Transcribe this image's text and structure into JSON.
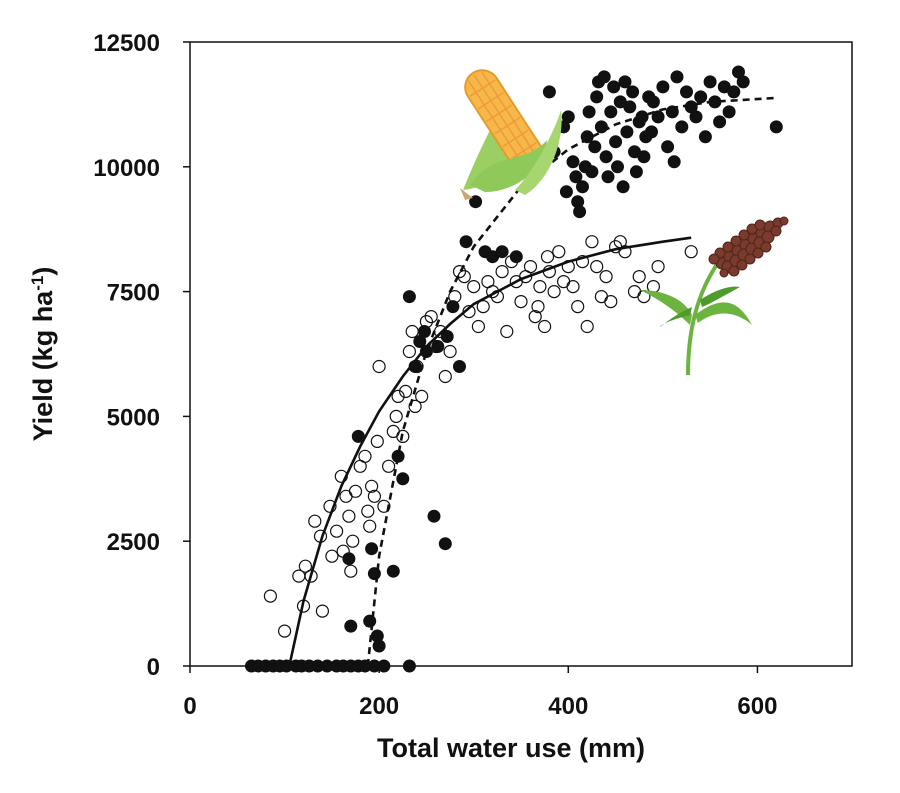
{
  "chart_data": {
    "type": "scatter",
    "xlabel": "Total water use (mm)",
    "ylabel": "Yield (kg ha",
    "ylabel_sup": "-1",
    "ylabel_close": ")",
    "xlim": [
      0,
      700
    ],
    "ylim": [
      0,
      12500
    ],
    "xticks": [
      0,
      200,
      400,
      600
    ],
    "yticks": [
      0,
      2500,
      5000,
      7500,
      10000,
      12500
    ],
    "grid": false,
    "legend": "none",
    "illustrations": [
      "corn-icon",
      "sorghum-icon"
    ],
    "colors": {
      "ink": "#111111",
      "corn_kernel": "#f7b84a",
      "husk": "#8fc95a",
      "sorghum_head": "#7a3b2e",
      "stem": "#6cb33f"
    },
    "series": [
      {
        "marker": "filled-circle",
        "fit_line": "dashed",
        "points": [
          [
            65,
            0
          ],
          [
            72,
            0
          ],
          [
            80,
            0
          ],
          [
            88,
            0
          ],
          [
            95,
            0
          ],
          [
            102,
            0
          ],
          [
            112,
            0
          ],
          [
            118,
            0
          ],
          [
            126,
            0
          ],
          [
            135,
            0
          ],
          [
            145,
            0
          ],
          [
            155,
            0
          ],
          [
            162,
            0
          ],
          [
            170,
            0
          ],
          [
            178,
            0
          ],
          [
            185,
            0
          ],
          [
            195,
            0
          ],
          [
            205,
            0
          ],
          [
            232,
            0
          ],
          [
            178,
            4600
          ],
          [
            170,
            800
          ],
          [
            168,
            2150
          ],
          [
            190,
            900
          ],
          [
            192,
            2350
          ],
          [
            195,
            1850
          ],
          [
            198,
            600
          ],
          [
            200,
            400
          ],
          [
            215,
            1900
          ],
          [
            220,
            4200
          ],
          [
            225,
            3750
          ],
          [
            232,
            7400
          ],
          [
            238,
            6000
          ],
          [
            243,
            6500
          ],
          [
            248,
            6700
          ],
          [
            250,
            6300
          ],
          [
            258,
            3000
          ],
          [
            262,
            6400
          ],
          [
            270,
            2450
          ],
          [
            272,
            6600
          ],
          [
            278,
            7200
          ],
          [
            285,
            6000
          ],
          [
            292,
            8500
          ],
          [
            302,
            9300
          ],
          [
            312,
            8300
          ],
          [
            320,
            8200
          ],
          [
            330,
            8300
          ],
          [
            345,
            8200
          ],
          [
            360,
            10400
          ],
          [
            375,
            10200
          ],
          [
            380,
            11500
          ],
          [
            385,
            10300
          ],
          [
            395,
            10800
          ],
          [
            398,
            9500
          ],
          [
            400,
            11000
          ],
          [
            405,
            10100
          ],
          [
            408,
            9800
          ],
          [
            410,
            9300
          ],
          [
            412,
            9100
          ],
          [
            415,
            9600
          ],
          [
            418,
            10000
          ],
          [
            420,
            10600
          ],
          [
            422,
            11100
          ],
          [
            425,
            9900
          ],
          [
            428,
            10400
          ],
          [
            430,
            11400
          ],
          [
            432,
            11700
          ],
          [
            435,
            10800
          ],
          [
            438,
            11800
          ],
          [
            440,
            10200
          ],
          [
            442,
            9800
          ],
          [
            445,
            11100
          ],
          [
            448,
            11600
          ],
          [
            450,
            10500
          ],
          [
            452,
            10000
          ],
          [
            455,
            11300
          ],
          [
            458,
            9600
          ],
          [
            460,
            11700
          ],
          [
            462,
            10700
          ],
          [
            465,
            11200
          ],
          [
            468,
            11500
          ],
          [
            470,
            10300
          ],
          [
            472,
            9900
          ],
          [
            475,
            10900
          ],
          [
            478,
            11000
          ],
          [
            480,
            10200
          ],
          [
            482,
            10600
          ],
          [
            485,
            11400
          ],
          [
            488,
            10700
          ],
          [
            490,
            11300
          ],
          [
            495,
            11000
          ],
          [
            500,
            11600
          ],
          [
            505,
            10400
          ],
          [
            510,
            11100
          ],
          [
            512,
            10100
          ],
          [
            515,
            11800
          ],
          [
            520,
            10800
          ],
          [
            525,
            11500
          ],
          [
            530,
            11200
          ],
          [
            535,
            11000
          ],
          [
            540,
            11400
          ],
          [
            545,
            10600
          ],
          [
            550,
            11700
          ],
          [
            555,
            11300
          ],
          [
            560,
            10900
          ],
          [
            565,
            11600
          ],
          [
            570,
            11100
          ],
          [
            575,
            11500
          ],
          [
            580,
            11900
          ],
          [
            585,
            11700
          ],
          [
            620,
            10800
          ]
        ],
        "fit": [
          [
            188,
            0
          ],
          [
            200,
            2200
          ],
          [
            225,
            4700
          ],
          [
            250,
            6300
          ],
          [
            275,
            7500
          ],
          [
            300,
            8400
          ],
          [
            350,
            9600
          ],
          [
            400,
            10350
          ],
          [
            450,
            10850
          ],
          [
            500,
            11150
          ],
          [
            550,
            11300
          ],
          [
            620,
            11380
          ]
        ]
      },
      {
        "marker": "open-circle",
        "fit_line": "solid",
        "points": [
          [
            85,
            1400
          ],
          [
            100,
            700
          ],
          [
            115,
            1800
          ],
          [
            120,
            1200
          ],
          [
            122,
            2000
          ],
          [
            128,
            1800
          ],
          [
            132,
            2900
          ],
          [
            138,
            2600
          ],
          [
            140,
            1100
          ],
          [
            148,
            3200
          ],
          [
            150,
            2200
          ],
          [
            155,
            2700
          ],
          [
            160,
            3800
          ],
          [
            162,
            2300
          ],
          [
            165,
            3400
          ],
          [
            168,
            3000
          ],
          [
            170,
            1900
          ],
          [
            172,
            2500
          ],
          [
            175,
            3500
          ],
          [
            180,
            4000
          ],
          [
            185,
            4200
          ],
          [
            188,
            3100
          ],
          [
            190,
            2800
          ],
          [
            192,
            3600
          ],
          [
            195,
            3400
          ],
          [
            198,
            4500
          ],
          [
            200,
            6000
          ],
          [
            205,
            3200
          ],
          [
            210,
            4000
          ],
          [
            215,
            4700
          ],
          [
            218,
            5000
          ],
          [
            220,
            5400
          ],
          [
            225,
            4600
          ],
          [
            228,
            5500
          ],
          [
            232,
            6300
          ],
          [
            235,
            6700
          ],
          [
            238,
            5200
          ],
          [
            240,
            6000
          ],
          [
            245,
            5400
          ],
          [
            250,
            6900
          ],
          [
            255,
            7000
          ],
          [
            260,
            6400
          ],
          [
            265,
            6700
          ],
          [
            270,
            5800
          ],
          [
            275,
            6300
          ],
          [
            280,
            7400
          ],
          [
            285,
            7900
          ],
          [
            290,
            7800
          ],
          [
            295,
            7100
          ],
          [
            300,
            7600
          ],
          [
            305,
            6800
          ],
          [
            310,
            7200
          ],
          [
            315,
            7700
          ],
          [
            320,
            7500
          ],
          [
            325,
            7400
          ],
          [
            330,
            7900
          ],
          [
            335,
            6700
          ],
          [
            340,
            8100
          ],
          [
            345,
            7700
          ],
          [
            350,
            7300
          ],
          [
            355,
            7800
          ],
          [
            360,
            8000
          ],
          [
            365,
            7000
          ],
          [
            368,
            7200
          ],
          [
            370,
            7600
          ],
          [
            375,
            6800
          ],
          [
            378,
            8200
          ],
          [
            380,
            7900
          ],
          [
            385,
            7500
          ],
          [
            390,
            8300
          ],
          [
            395,
            7700
          ],
          [
            400,
            8000
          ],
          [
            405,
            7600
          ],
          [
            410,
            7200
          ],
          [
            415,
            8100
          ],
          [
            420,
            6800
          ],
          [
            425,
            8500
          ],
          [
            430,
            8000
          ],
          [
            435,
            7400
          ],
          [
            440,
            7800
          ],
          [
            445,
            7300
          ],
          [
            450,
            8400
          ],
          [
            455,
            8500
          ],
          [
            460,
            8300
          ],
          [
            470,
            7500
          ],
          [
            475,
            7800
          ],
          [
            480,
            7400
          ],
          [
            490,
            7600
          ],
          [
            495,
            8000
          ],
          [
            530,
            8300
          ]
        ],
        "fit": [
          [
            105,
            0
          ],
          [
            120,
            1300
          ],
          [
            140,
            2600
          ],
          [
            160,
            3600
          ],
          [
            180,
            4400
          ],
          [
            200,
            5100
          ],
          [
            225,
            5800
          ],
          [
            250,
            6400
          ],
          [
            275,
            6850
          ],
          [
            300,
            7250
          ],
          [
            350,
            7750
          ],
          [
            400,
            8100
          ],
          [
            450,
            8350
          ],
          [
            500,
            8500
          ],
          [
            530,
            8580
          ]
        ]
      }
    ]
  }
}
